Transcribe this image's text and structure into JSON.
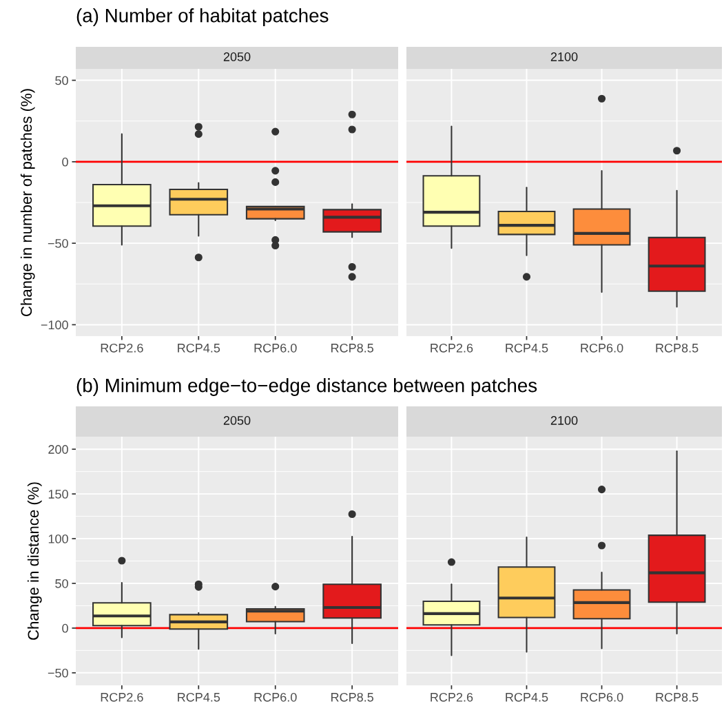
{
  "chart_data": [
    {
      "type": "box",
      "title": "2050",
      "annotations": [
        "(a) Number of habitat patches"
      ],
      "ylabel": "Change in number of patches (%)",
      "categories": [
        "RCP2.6",
        "RCP4.5",
        "RCP6.0",
        "RCP8.5"
      ],
      "colors": [
        "#ffffb2",
        "#fecc5c",
        "#fd8d3c",
        "#e31a1c"
      ],
      "boxes": [
        {
          "low": -51,
          "q1": -39.5,
          "median": -27,
          "q3": -14,
          "high": 17
        },
        {
          "low": -45.5,
          "q1": -32.5,
          "median": -23,
          "q3": -17,
          "high": -13,
          "outliers": [
            21.5,
            17,
            -58.7
          ]
        },
        {
          "low": -36,
          "q1": -35,
          "median": -29,
          "q3": -27.5,
          "high": -27.5,
          "outliers": [
            18.5,
            -5.5,
            -12.5,
            -48,
            -51.4
          ]
        },
        {
          "low": -46.3,
          "q1": -43,
          "median": -34,
          "q3": -29.4,
          "high": -26,
          "outliers": [
            29,
            19.8,
            -64.5,
            -70.6
          ]
        }
      ],
      "ylim": [
        -107,
        57
      ],
      "yticks": [
        -100,
        -50,
        0,
        50
      ],
      "grid": true,
      "ref_lines": [
        {
          "axis": "y",
          "value": 0,
          "color": "#ff0000"
        }
      ]
    },
    {
      "type": "box",
      "title": "2100",
      "categories": [
        "RCP2.6",
        "RCP4.5",
        "RCP6.0",
        "RCP8.5"
      ],
      "colors": [
        "#ffffb2",
        "#fecc5c",
        "#fd8d3c",
        "#e31a1c"
      ],
      "boxes": [
        {
          "low": -53,
          "q1": -39.5,
          "median": -31,
          "q3": -8.6,
          "high": 21.7
        },
        {
          "low": -57.4,
          "q1": -44.6,
          "median": -39,
          "q3": -30.5,
          "high": -15.8,
          "outliers": [
            -70.6
          ]
        },
        {
          "low": -80,
          "q1": -51,
          "median": -44,
          "q3": -29,
          "high": -5.6,
          "outliers": [
            38.7
          ]
        },
        {
          "low": -89,
          "q1": -79.4,
          "median": -64,
          "q3": -46.5,
          "high": -17.7,
          "outliers": [
            6.8
          ]
        }
      ],
      "ylim": [
        -107,
        57
      ],
      "yticks": [
        -100,
        -50,
        0,
        50
      ],
      "tick_labels": "x",
      "grid": true,
      "ref_lines": [
        {
          "axis": "y",
          "value": 0,
          "color": "#ff0000"
        }
      ]
    },
    {
      "type": "box",
      "title": "2050",
      "annotations": [
        "(b) Minimum edge−to−edge distance between patches"
      ],
      "ylabel": "Change in distance (%)",
      "categories": [
        "RCP2.6",
        "RCP4.5",
        "RCP6.0",
        "RCP8.5"
      ],
      "colors": [
        "#ffffb2",
        "#fecc5c",
        "#fd8d3c",
        "#e31a1c"
      ],
      "boxes": [
        {
          "low": -10.5,
          "q1": 2.8,
          "median": 13.6,
          "q3": 28.2,
          "high": 50.8,
          "outliers": [
            75.4
          ]
        },
        {
          "low": -23.3,
          "q1": -1,
          "median": 7,
          "q3": 15,
          "high": 17,
          "outliers": [
            49,
            46
          ]
        },
        {
          "low": -6.2,
          "q1": 7.2,
          "median": 19,
          "q3": 21.5,
          "high": 24,
          "outliers": [
            46.4
          ]
        },
        {
          "low": -17,
          "q1": 11.3,
          "median": 23,
          "q3": 49,
          "high": 102.3,
          "outliers": [
            127.4
          ]
        }
      ],
      "ylim": [
        -64,
        214
      ],
      "yticks": [
        -50,
        0,
        50,
        100,
        150,
        200
      ],
      "grid": true,
      "ref_lines": [
        {
          "axis": "y",
          "value": 0,
          "color": "#ff0000"
        }
      ]
    },
    {
      "type": "box",
      "title": "2100",
      "categories": [
        "RCP2.6",
        "RCP4.5",
        "RCP6.0",
        "RCP8.5"
      ],
      "colors": [
        "#ffffb2",
        "#fecc5c",
        "#fd8d3c",
        "#e31a1c"
      ],
      "boxes": [
        {
          "low": -30.5,
          "q1": 3.6,
          "median": 16.2,
          "q3": 30,
          "high": 49,
          "outliers": [
            73.8
          ]
        },
        {
          "low": -26.7,
          "q1": 11.8,
          "median": 33.6,
          "q3": 68.2,
          "high": 101.5
        },
        {
          "low": -22.8,
          "q1": 10.5,
          "median": 28.5,
          "q3": 42.6,
          "high": 62.3,
          "outliers": [
            155,
            92.3
          ]
        },
        {
          "low": -6.2,
          "q1": 29,
          "median": 61.8,
          "q3": 103.8,
          "high": 197.7
        }
      ],
      "ylim": [
        -64,
        214
      ],
      "yticks": [
        -50,
        0,
        50,
        100,
        150,
        200
      ],
      "tick_labels": "x",
      "grid": true,
      "ref_lines": [
        {
          "axis": "y",
          "value": 0,
          "color": "#ff0000"
        }
      ]
    }
  ]
}
